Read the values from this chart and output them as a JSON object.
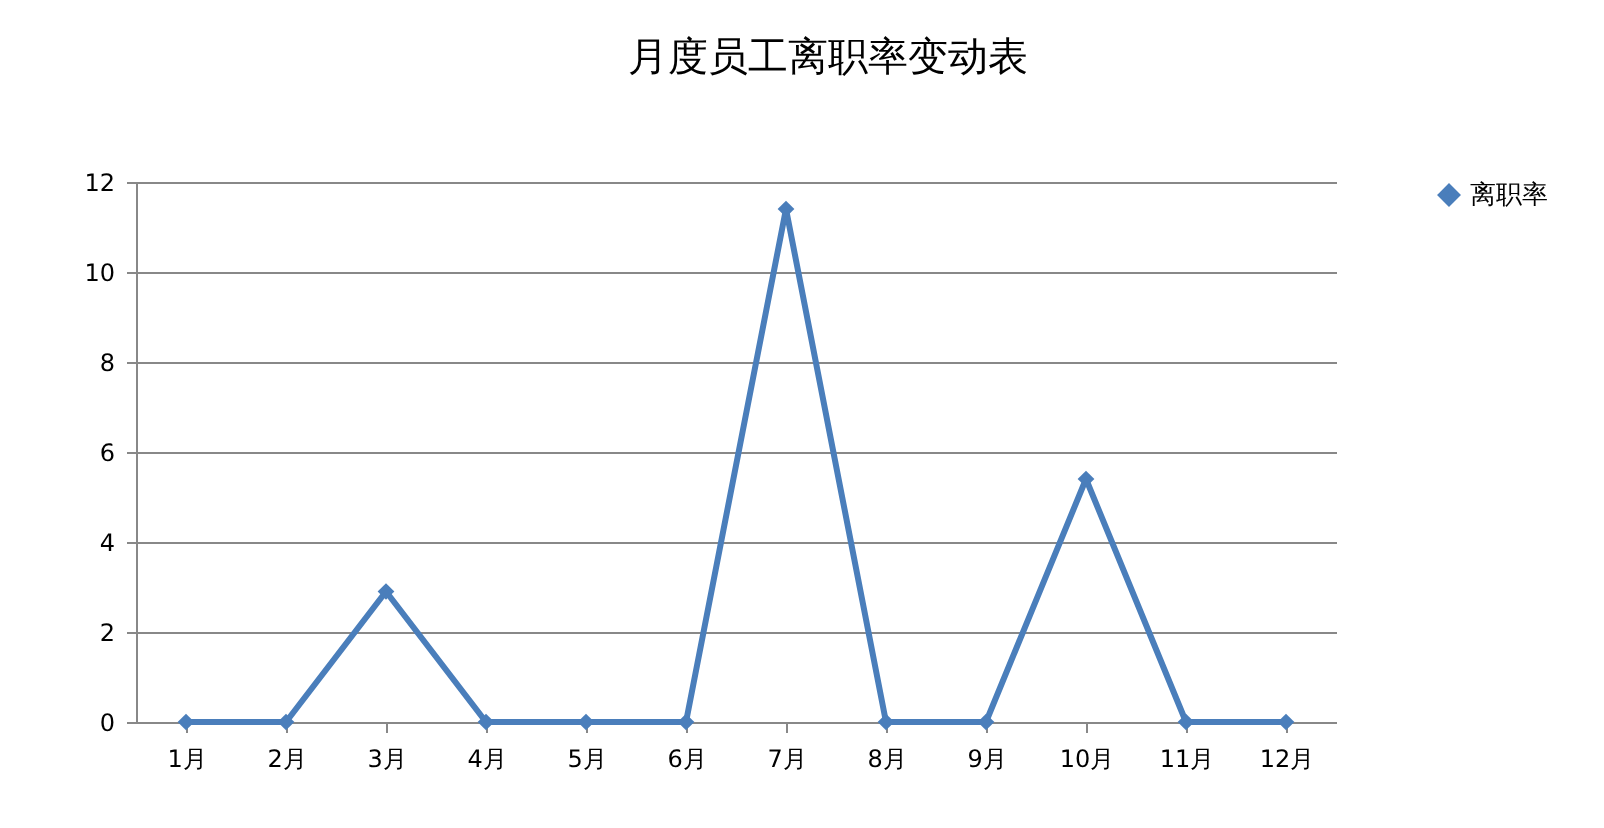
{
  "chart_data": {
    "type": "line",
    "title": "月度员工离职率变动表",
    "categories": [
      "1月",
      "2月",
      "3月",
      "4月",
      "5月",
      "6月",
      "7月",
      "8月",
      "9月",
      "10月",
      "11月",
      "12月"
    ],
    "series": [
      {
        "name": "离职率",
        "color": "#4a7ebb",
        "values": [
          0,
          0,
          2.9,
          0,
          0,
          0,
          11.4,
          0,
          0,
          5.4,
          0,
          0
        ]
      }
    ],
    "ylim": [
      0,
      12
    ],
    "yticks": [
      0,
      2,
      4,
      6,
      8,
      10,
      12
    ],
    "grid": "y",
    "legend": "right",
    "marker": "diamond",
    "line_style": "solid"
  }
}
